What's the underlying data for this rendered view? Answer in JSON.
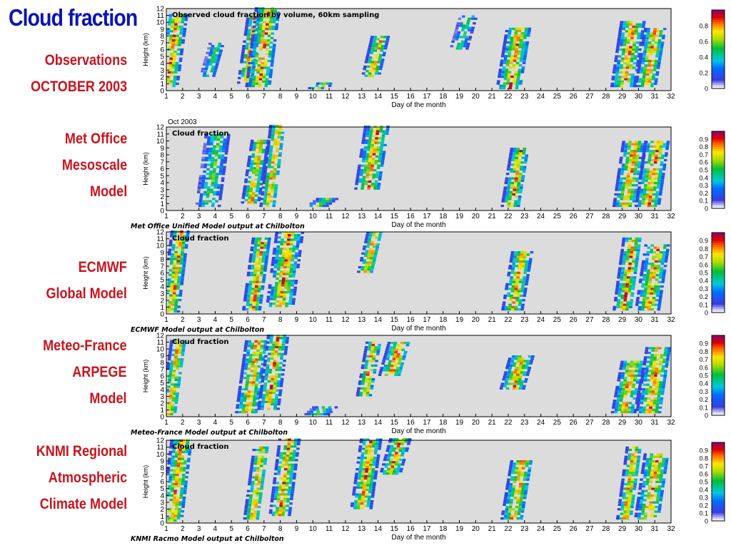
{
  "page": {
    "title": "Cloud fraction",
    "colors": {
      "title": "#0a14b4",
      "labels": "#c8141e",
      "background_plot": "#dcdcdc"
    }
  },
  "labels": [
    [
      "Observations",
      "OCTOBER 2003"
    ],
    [
      "Met Office",
      "Mesoscale",
      "Model"
    ],
    [
      "ECMWF",
      "Global Model"
    ],
    [
      "Meteo-France",
      "ARPEGE",
      "Model"
    ],
    [
      "KNMI Regional",
      "Atmospheric",
      "Climate Model"
    ]
  ],
  "chart_data": [
    {
      "type": "heatmap",
      "title": "Observed cloud fraction by volume, 60km sampling",
      "xlabel": "Day of the month",
      "ylabel": "Height (km)",
      "xlim": [
        1,
        32
      ],
      "ylim": [
        0,
        12
      ],
      "xticks": [
        1,
        2,
        3,
        4,
        5,
        6,
        7,
        8,
        9,
        10,
        11,
        12,
        13,
        14,
        15,
        16,
        17,
        18,
        19,
        20,
        21,
        22,
        23,
        24,
        25,
        26,
        27,
        28,
        29,
        30,
        31,
        32
      ],
      "yticks": [
        0,
        1,
        2,
        3,
        4,
        5,
        6,
        7,
        8,
        9,
        10,
        11,
        12
      ],
      "colorbar_ticks": [
        0,
        0.2,
        0.4,
        0.6,
        0.8
      ],
      "colorbar_range": [
        0,
        1
      ],
      "cloud_events": [
        {
          "day": 1.3,
          "base_km": 0.5,
          "top_km": 11,
          "max_fraction": 0.9
        },
        {
          "day": 3.8,
          "base_km": 2,
          "top_km": 7,
          "max_fraction": 0.6
        },
        {
          "day": 6.1,
          "base_km": 1,
          "top_km": 11,
          "max_fraction": 0.9
        },
        {
          "day": 6.9,
          "base_km": 0.5,
          "top_km": 12,
          "max_fraction": 0.9
        },
        {
          "day": 10.5,
          "base_km": 0.2,
          "top_km": 1,
          "max_fraction": 0.8
        },
        {
          "day": 13.8,
          "base_km": 2,
          "top_km": 8,
          "max_fraction": 0.9
        },
        {
          "day": 19.2,
          "base_km": 6,
          "top_km": 11,
          "max_fraction": 0.6
        },
        {
          "day": 22.3,
          "base_km": 0.2,
          "top_km": 9,
          "max_fraction": 0.9
        },
        {
          "day": 29.3,
          "base_km": 0.5,
          "top_km": 10,
          "max_fraction": 0.9
        },
        {
          "day": 30.7,
          "base_km": 0.5,
          "top_km": 9,
          "max_fraction": 0.9
        }
      ]
    },
    {
      "type": "heatmap",
      "title": "Cloud fraction",
      "header": "Oct 2003",
      "caption": "Met Office Unified Model output at Chilbolton",
      "xlabel": "Day of the month",
      "ylabel": "Height (km)",
      "xlim": [
        1,
        32
      ],
      "ylim": [
        0,
        12
      ],
      "colorbar_ticks": [
        0,
        0.1,
        0.2,
        0.3,
        0.4,
        0.5,
        0.6,
        0.7,
        0.8,
        0.9
      ],
      "colorbar_range": [
        0,
        1
      ],
      "cloud_events": [
        {
          "day": 3.8,
          "base_km": 0.5,
          "top_km": 11,
          "max_fraction": 0.6
        },
        {
          "day": 6.4,
          "base_km": 1,
          "top_km": 10,
          "max_fraction": 0.9
        },
        {
          "day": 7.5,
          "base_km": 0.5,
          "top_km": 12,
          "max_fraction": 0.9
        },
        {
          "day": 10.5,
          "base_km": 0.5,
          "top_km": 1.5,
          "max_fraction": 0.7
        },
        {
          "day": 13.6,
          "base_km": 3,
          "top_km": 12,
          "max_fraction": 0.9
        },
        {
          "day": 22.4,
          "base_km": 0.5,
          "top_km": 9,
          "max_fraction": 0.9
        },
        {
          "day": 29.4,
          "base_km": 0.5,
          "top_km": 10,
          "max_fraction": 0.9
        },
        {
          "day": 30.8,
          "base_km": 0.5,
          "top_km": 10,
          "max_fraction": 0.9
        }
      ]
    },
    {
      "type": "heatmap",
      "title": "Cloud fraction",
      "caption": "ECMWF Model output at Chilbolton",
      "xlabel": "Day of the month",
      "ylabel": "Height (km)",
      "xlim": [
        1,
        32
      ],
      "ylim": [
        0,
        12
      ],
      "colorbar_ticks": [
        0,
        0.1,
        0.2,
        0.3,
        0.4,
        0.5,
        0.6,
        0.7,
        0.8,
        0.9
      ],
      "colorbar_range": [
        0,
        1
      ],
      "cloud_events": [
        {
          "day": 1.5,
          "base_km": 0.2,
          "top_km": 12,
          "max_fraction": 0.9
        },
        {
          "day": 6.5,
          "base_km": 0.5,
          "top_km": 11,
          "max_fraction": 0.9
        },
        {
          "day": 8.2,
          "base_km": 1,
          "top_km": 12,
          "max_fraction": 0.9
        },
        {
          "day": 13.5,
          "base_km": 6,
          "top_km": 12,
          "max_fraction": 0.9
        },
        {
          "day": 22.5,
          "base_km": 0.5,
          "top_km": 9,
          "max_fraction": 0.9
        },
        {
          "day": 29.3,
          "base_km": 0.5,
          "top_km": 11,
          "max_fraction": 0.9
        },
        {
          "day": 30.8,
          "base_km": 0.5,
          "top_km": 10,
          "max_fraction": 0.9
        }
      ]
    },
    {
      "type": "heatmap",
      "title": "Cloud fraction",
      "caption": "Meteo-France Model output at Chilbolton",
      "xlabel": "Day of the month",
      "ylabel": "Height (km)",
      "xlim": [
        1,
        32
      ],
      "ylim": [
        0,
        12
      ],
      "colorbar_ticks": [
        0,
        0.1,
        0.2,
        0.3,
        0.4,
        0.5,
        0.6,
        0.7,
        0.8,
        0.9
      ],
      "colorbar_range": [
        0,
        1
      ],
      "cloud_events": [
        {
          "day": 1.4,
          "base_km": 0.2,
          "top_km": 11,
          "max_fraction": 0.9
        },
        {
          "day": 6.2,
          "base_km": 0.5,
          "top_km": 11,
          "max_fraction": 0.9
        },
        {
          "day": 7.5,
          "base_km": 1,
          "top_km": 12,
          "max_fraction": 0.9
        },
        {
          "day": 10.5,
          "base_km": 0.2,
          "top_km": 1.5,
          "max_fraction": 0.6
        },
        {
          "day": 13.4,
          "base_km": 3,
          "top_km": 11,
          "max_fraction": 0.9
        },
        {
          "day": 15.0,
          "base_km": 6,
          "top_km": 11,
          "max_fraction": 0.9
        },
        {
          "day": 22.5,
          "base_km": 4,
          "top_km": 9,
          "max_fraction": 0.9
        },
        {
          "day": 29.3,
          "base_km": 0.5,
          "top_km": 8,
          "max_fraction": 0.9
        },
        {
          "day": 30.9,
          "base_km": 0.5,
          "top_km": 10,
          "max_fraction": 0.9
        }
      ]
    },
    {
      "type": "heatmap",
      "title": "Cloud fraction",
      "caption": "KNMI Racmo Model output at Chilbolton",
      "xlabel": "Day of the month",
      "ylabel": "Height (km)",
      "xlim": [
        1,
        32
      ],
      "ylim": [
        0,
        12
      ],
      "colorbar_ticks": [
        0,
        0.1,
        0.2,
        0.3,
        0.4,
        0.5,
        0.6,
        0.7,
        0.8,
        0.9
      ],
      "colorbar_range": [
        0,
        1
      ],
      "cloud_events": [
        {
          "day": 1.6,
          "base_km": 0.2,
          "top_km": 12,
          "max_fraction": 0.9
        },
        {
          "day": 6.5,
          "base_km": 0.5,
          "top_km": 11,
          "max_fraction": 0.9
        },
        {
          "day": 8.2,
          "base_km": 1,
          "top_km": 12,
          "max_fraction": 0.9
        },
        {
          "day": 13.2,
          "base_km": 2,
          "top_km": 12,
          "max_fraction": 0.9
        },
        {
          "day": 15.0,
          "base_km": 7,
          "top_km": 12,
          "max_fraction": 0.9
        },
        {
          "day": 22.5,
          "base_km": 0.5,
          "top_km": 9,
          "max_fraction": 0.9
        },
        {
          "day": 29.4,
          "base_km": 0.5,
          "top_km": 11,
          "max_fraction": 0.9
        },
        {
          "day": 30.8,
          "base_km": 0.5,
          "top_km": 10,
          "max_fraction": 0.9
        }
      ]
    }
  ]
}
